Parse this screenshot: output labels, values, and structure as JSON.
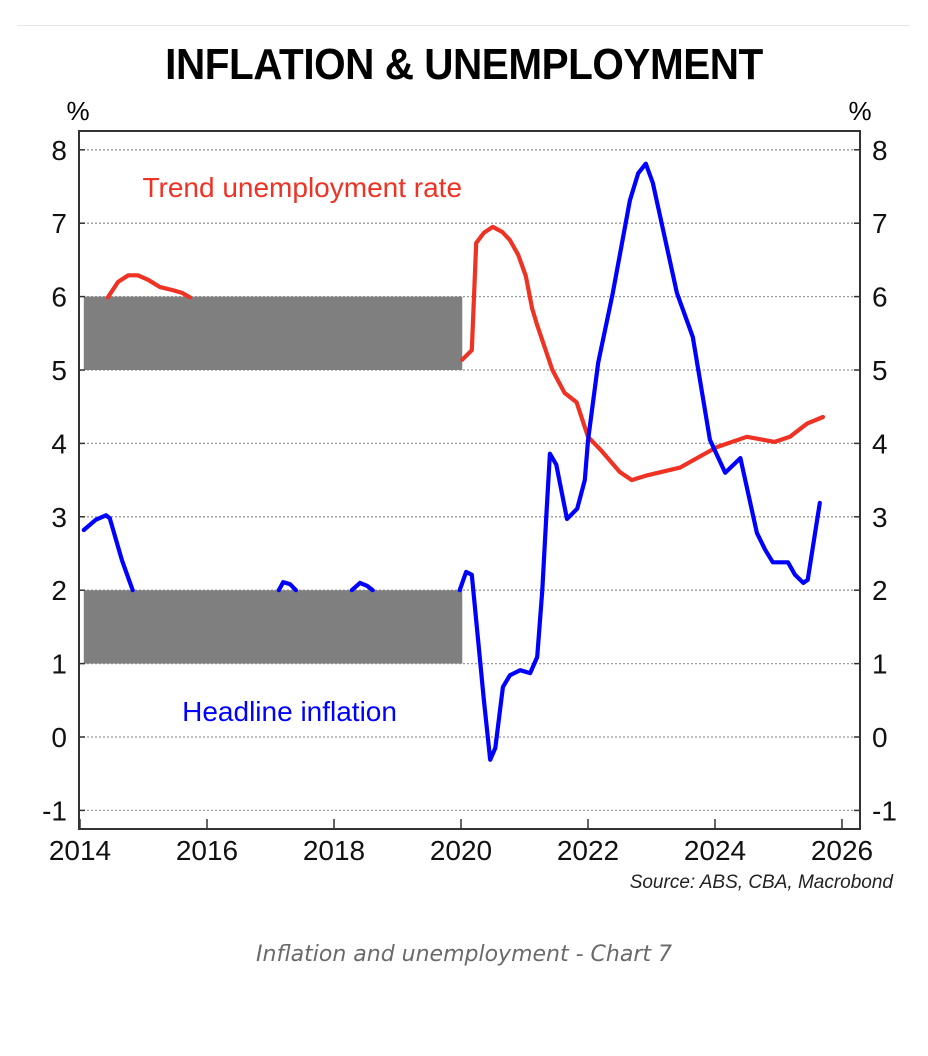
{
  "chart_data": {
    "type": "line",
    "title": "INFLATION & UNEMPLOYMENT",
    "left_axis_unit": "%",
    "right_axis_unit": "%",
    "ylim": [
      -1.25,
      8.25
    ],
    "xlim": [
      2014,
      2026.3
    ],
    "y_ticks": [
      "-1",
      "0",
      "1",
      "2",
      "3",
      "4",
      "5",
      "6",
      "7",
      "8"
    ],
    "y_tick_values": [
      -1,
      0,
      1,
      2,
      3,
      4,
      5,
      6,
      7,
      8
    ],
    "x_ticks": [
      "2014",
      "2016",
      "2018",
      "2020",
      "2022",
      "2024",
      "2026"
    ],
    "x_tick_values": [
      2014,
      2016,
      2018,
      2020,
      2022,
      2024,
      2026
    ],
    "grid": true,
    "source": "Source: ABS, CBA, Macrobond",
    "overlays": [
      {
        "name": "mask-upper",
        "x": [
          2014.06,
          2020.02
        ],
        "y": [
          5,
          6
        ],
        "color": "#7f7f7f"
      },
      {
        "name": "mask-lower",
        "x": [
          2014.06,
          2020.02
        ],
        "y": [
          1,
          2
        ],
        "color": "#7f7f7f"
      }
    ],
    "series": [
      {
        "name": "Trend unemployment rate",
        "color": "#ee3224",
        "segments": [
          [
            [
              2014.44,
              5.99
            ],
            [
              2014.6,
              6.2
            ],
            [
              2014.76,
              6.29
            ],
            [
              2014.91,
              6.29
            ],
            [
              2015.07,
              6.23
            ],
            [
              2015.26,
              6.13
            ],
            [
              2015.45,
              6.09
            ],
            [
              2015.61,
              6.05
            ],
            [
              2015.73,
              5.99
            ]
          ],
          [
            [
              2020.02,
              5.14
            ],
            [
              2020.17,
              5.27
            ],
            [
              2020.24,
              6.73
            ],
            [
              2020.36,
              6.87
            ],
            [
              2020.5,
              6.95
            ],
            [
              2020.65,
              6.88
            ],
            [
              2020.77,
              6.77
            ],
            [
              2020.9,
              6.57
            ],
            [
              2021.02,
              6.28
            ],
            [
              2021.12,
              5.84
            ],
            [
              2021.2,
              5.61
            ],
            [
              2021.44,
              5.0
            ],
            [
              2021.63,
              4.69
            ],
            [
              2021.82,
              4.56
            ],
            [
              2022.0,
              4.09
            ],
            [
              2022.19,
              3.92
            ],
            [
              2022.5,
              3.61
            ],
            [
              2022.69,
              3.5
            ],
            [
              2022.91,
              3.56
            ],
            [
              2023.2,
              3.62
            ],
            [
              2023.45,
              3.67
            ],
            [
              2023.76,
              3.82
            ],
            [
              2024.03,
              3.95
            ],
            [
              2024.5,
              4.09
            ],
            [
              2024.94,
              4.02
            ],
            [
              2025.18,
              4.09
            ],
            [
              2025.45,
              4.27
            ],
            [
              2025.7,
              4.36
            ]
          ]
        ]
      },
      {
        "name": "Headline inflation",
        "color": "#0000ff",
        "segments": [
          [
            [
              2014.06,
              2.82
            ],
            [
              2014.25,
              2.96
            ],
            [
              2014.41,
              3.02
            ],
            [
              2014.47,
              2.98
            ],
            [
              2014.66,
              2.41
            ],
            [
              2014.83,
              2.0
            ]
          ],
          [
            [
              2017.13,
              2.0
            ],
            [
              2017.2,
              2.11
            ],
            [
              2017.31,
              2.08
            ],
            [
              2017.4,
              2.0
            ]
          ],
          [
            [
              2018.28,
              2.0
            ],
            [
              2018.41,
              2.1
            ],
            [
              2018.52,
              2.06
            ],
            [
              2018.61,
              2.0
            ]
          ],
          [
            [
              2019.98,
              2.0
            ],
            [
              2020.08,
              2.25
            ],
            [
              2020.17,
              2.21
            ],
            [
              2020.27,
              1.32
            ],
            [
              2020.36,
              0.5
            ],
            [
              2020.46,
              -0.31
            ],
            [
              2020.54,
              -0.15
            ],
            [
              2020.66,
              0.68
            ],
            [
              2020.77,
              0.84
            ],
            [
              2020.93,
              0.91
            ],
            [
              2021.09,
              0.87
            ],
            [
              2021.2,
              1.09
            ],
            [
              2021.28,
              2.0
            ],
            [
              2021.34,
              2.96
            ],
            [
              2021.4,
              3.86
            ],
            [
              2021.5,
              3.71
            ],
            [
              2021.67,
              2.97
            ],
            [
              2021.83,
              3.11
            ],
            [
              2021.95,
              3.5
            ],
            [
              2022.0,
              4.04
            ],
            [
              2022.16,
              5.1
            ],
            [
              2022.39,
              6.05
            ],
            [
              2022.66,
              7.31
            ],
            [
              2022.79,
              7.68
            ],
            [
              2022.91,
              7.81
            ],
            [
              2023.02,
              7.55
            ],
            [
              2023.4,
              6.05
            ],
            [
              2023.65,
              5.45
            ],
            [
              2023.92,
              4.05
            ],
            [
              2024.16,
              3.6
            ],
            [
              2024.4,
              3.8
            ],
            [
              2024.66,
              2.78
            ],
            [
              2024.79,
              2.55
            ],
            [
              2024.91,
              2.38
            ],
            [
              2025.15,
              2.38
            ],
            [
              2025.26,
              2.21
            ],
            [
              2025.39,
              2.1
            ],
            [
              2025.46,
              2.14
            ],
            [
              2025.65,
              3.19
            ]
          ]
        ]
      }
    ],
    "annotations": [
      {
        "text": "Trend unemployment rate",
        "x": 2017.5,
        "y": 7.36,
        "color": "#ee3224"
      },
      {
        "text": "Headline inflation",
        "x": 2017.3,
        "y": 0.22,
        "color": "#0000ff"
      }
    ]
  },
  "caption": "Inflation and unemployment - Chart 7"
}
